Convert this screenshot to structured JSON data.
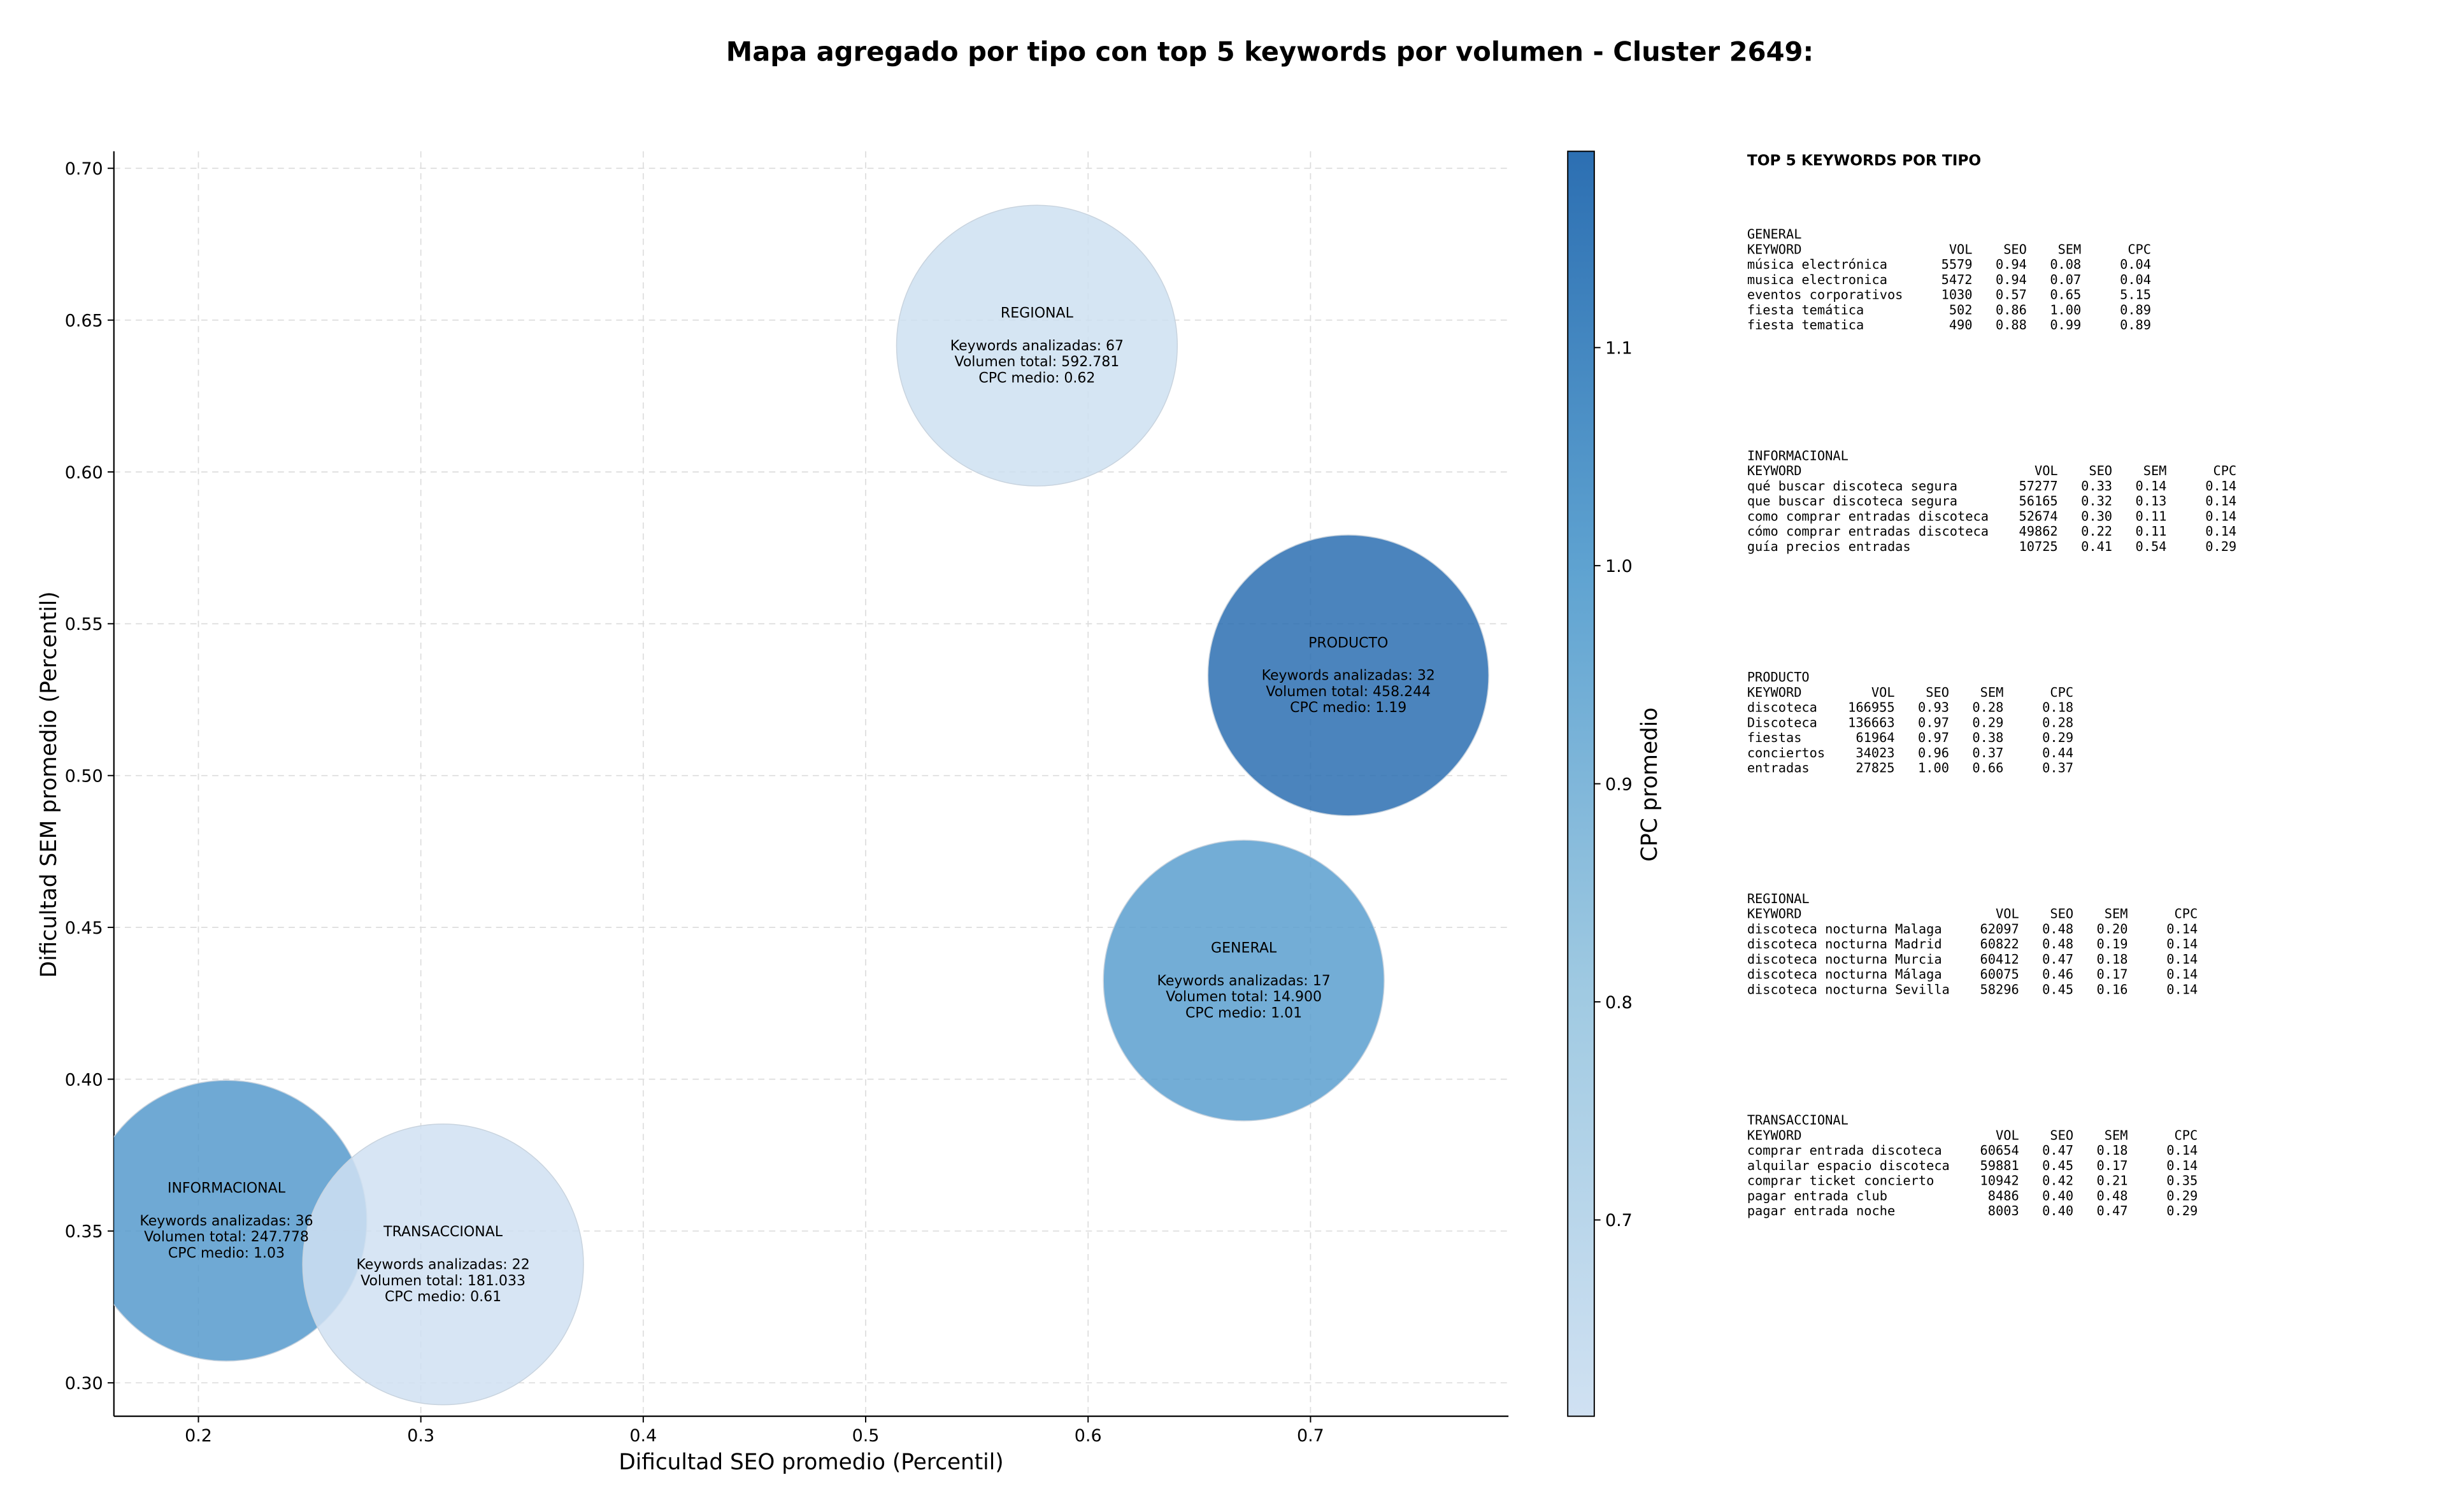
{
  "chart_data": {
    "type": "bubble",
    "title": "Mapa agregado por tipo con top 5 keywords por volumen - Cluster 2649:",
    "xlabel": "Dificultad SEO promedio (Percentil)",
    "ylabel": "Dificultad SEM promedio (Percentil)",
    "xlim": [
      0.162,
      0.789
    ],
    "ylim": [
      0.289,
      0.7056
    ],
    "xticks": [
      0.2,
      0.3,
      0.4,
      0.5,
      0.6,
      0.7
    ],
    "yticks": [
      {
        "value": 0.3,
        "label": "0.30"
      },
      {
        "value": 0.35,
        "label": "0.35"
      },
      {
        "value": 0.4,
        "label": "0.40"
      },
      {
        "value": 0.45,
        "label": "0.45"
      },
      {
        "value": 0.5,
        "label": "0.50"
      },
      {
        "value": 0.55,
        "label": "0.55"
      },
      {
        "value": 0.6,
        "label": "0.60"
      },
      {
        "value": 0.65,
        "label": "0.65"
      },
      {
        "value": 0.7,
        "label": "0.70"
      }
    ],
    "grid": true,
    "colorbar_label": "CPC promedio",
    "clim": [
      0.61,
      1.19
    ],
    "cticks": [
      0.7,
      0.8,
      0.9,
      {
        "value": 1.0,
        "label": "1.0"
      },
      1.1
    ],
    "colormap": [
      "#d0e1f2",
      "#a0cae2",
      "#5fa3d1",
      "#2c6fb2"
    ],
    "points": [
      {
        "name": "REGIONAL",
        "x": 0.577,
        "y": 0.6416,
        "cpc": 0.62,
        "lines": [
          "Keywords analizadas: 67",
          "Volumen total: 592.781",
          "CPC medio: 0.62"
        ]
      },
      {
        "name": "PRODUCTO",
        "x": 0.717,
        "y": 0.533,
        "cpc": 1.19,
        "lines": [
          "Keywords analizadas: 32",
          "Volumen total: 458.244",
          "CPC medio: 1.19"
        ]
      },
      {
        "name": "GENERAL",
        "x": 0.67,
        "y": 0.4325,
        "cpc": 1.01,
        "lines": [
          "Keywords analizadas: 17",
          "Volumen total: 14.900",
          "CPC medio: 1.01"
        ]
      },
      {
        "name": "INFORMACIONAL",
        "x": 0.2126,
        "y": 0.3534,
        "cpc": 1.03,
        "lines": [
          "Keywords analizadas: 36",
          "Volumen total: 247.778",
          "CPC medio: 1.03"
        ]
      },
      {
        "name": "TRANSACCIONAL",
        "x": 0.31,
        "y": 0.339,
        "cpc": 0.61,
        "lines": [
          "Keywords analizadas: 22",
          "Volumen total: 181.033",
          "CPC medio: 0.61"
        ]
      }
    ]
  },
  "keyword_tables": {
    "heading": "TOP 5 KEYWORDS POR TIPO",
    "sections": [
      {
        "name": "GENERAL",
        "columns": [
          "KEYWORD",
          "VOL",
          "SEO",
          "SEM",
          "CPC"
        ],
        "rows": [
          [
            "música electrónica",
            "5579",
            "0.94",
            "0.08",
            "0.04"
          ],
          [
            "musica electronica",
            "5472",
            "0.94",
            "0.07",
            "0.04"
          ],
          [
            "eventos corporativos",
            "1030",
            "0.57",
            "0.65",
            "5.15"
          ],
          [
            "fiesta temática",
            "502",
            "0.86",
            "1.00",
            "0.89"
          ],
          [
            "fiesta tematica",
            "490",
            "0.88",
            "0.99",
            "0.89"
          ]
        ]
      },
      {
        "name": "INFORMACIONAL",
        "columns": [
          "KEYWORD",
          "VOL",
          "SEO",
          "SEM",
          "CPC"
        ],
        "rows": [
          [
            "qué buscar discoteca segura",
            "57277",
            "0.33",
            "0.14",
            "0.14"
          ],
          [
            "que buscar discoteca segura",
            "56165",
            "0.32",
            "0.13",
            "0.14"
          ],
          [
            "como comprar entradas discoteca",
            "52674",
            "0.30",
            "0.11",
            "0.14"
          ],
          [
            "cómo comprar entradas discoteca",
            "49862",
            "0.22",
            "0.11",
            "0.14"
          ],
          [
            "guía precios entradas",
            "10725",
            "0.41",
            "0.54",
            "0.29"
          ]
        ]
      },
      {
        "name": "PRODUCTO",
        "columns": [
          "KEYWORD",
          "VOL",
          "SEO",
          "SEM",
          "CPC"
        ],
        "rows": [
          [
            "discoteca",
            "166955",
            "0.93",
            "0.28",
            "0.18"
          ],
          [
            "Discoteca",
            "136663",
            "0.97",
            "0.29",
            "0.28"
          ],
          [
            "fiestas",
            "61964",
            "0.97",
            "0.38",
            "0.29"
          ],
          [
            "conciertos",
            "34023",
            "0.96",
            "0.37",
            "0.44"
          ],
          [
            "entradas",
            "27825",
            "1.00",
            "0.66",
            "0.37"
          ]
        ]
      },
      {
        "name": "REGIONAL",
        "columns": [
          "KEYWORD",
          "VOL",
          "SEO",
          "SEM",
          "CPC"
        ],
        "rows": [
          [
            "discoteca nocturna Malaga",
            "62097",
            "0.48",
            "0.20",
            "0.14"
          ],
          [
            "discoteca nocturna Madrid",
            "60822",
            "0.48",
            "0.19",
            "0.14"
          ],
          [
            "discoteca nocturna Murcia",
            "60412",
            "0.47",
            "0.18",
            "0.14"
          ],
          [
            "discoteca nocturna Málaga",
            "60075",
            "0.46",
            "0.17",
            "0.14"
          ],
          [
            "discoteca nocturna Sevilla",
            "58296",
            "0.45",
            "0.16",
            "0.14"
          ]
        ]
      },
      {
        "name": "TRANSACCIONAL",
        "columns": [
          "KEYWORD",
          "VOL",
          "SEO",
          "SEM",
          "CPC"
        ],
        "rows": [
          [
            "comprar entrada discoteca",
            "60654",
            "0.47",
            "0.18",
            "0.14"
          ],
          [
            "alquilar espacio discoteca",
            "59881",
            "0.45",
            "0.17",
            "0.14"
          ],
          [
            "comprar ticket concierto",
            "10942",
            "0.42",
            "0.21",
            "0.35"
          ],
          [
            "pagar entrada club",
            "8486",
            "0.40",
            "0.48",
            "0.29"
          ],
          [
            "pagar entrada noche",
            "8003",
            "0.40",
            "0.47",
            "0.29"
          ]
        ]
      }
    ]
  }
}
